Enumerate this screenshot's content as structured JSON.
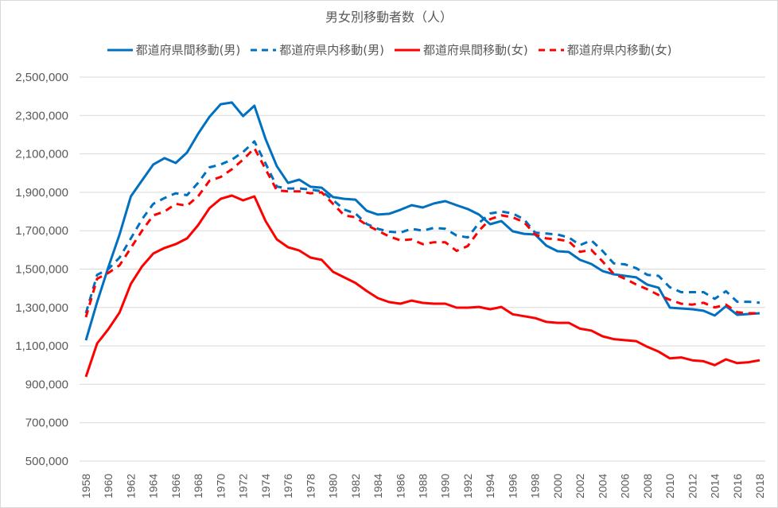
{
  "chart_data": {
    "type": "line",
    "title": "男女別移動者数（人）",
    "xlabel": "",
    "ylabel": "",
    "ylim": [
      500000,
      2500000
    ],
    "yticks": [
      500000,
      700000,
      900000,
      1100000,
      1300000,
      1500000,
      1700000,
      1900000,
      2100000,
      2300000,
      2500000
    ],
    "ytick_labels": [
      "500,000",
      "700,000",
      "900,000",
      "1,100,000",
      "1,300,000",
      "1,500,000",
      "1,700,000",
      "1,900,000",
      "2,100,000",
      "2,300,000",
      "2,500,000"
    ],
    "xtick_labels": [
      "1958",
      "1960",
      "1962",
      "1964",
      "1966",
      "1968",
      "1970",
      "1972",
      "1974",
      "1976",
      "1978",
      "1980",
      "1982",
      "1984",
      "1986",
      "1988",
      "1990",
      "1992",
      "1994",
      "1996",
      "1998",
      "2000",
      "2002",
      "2004",
      "2006",
      "2008",
      "2010",
      "2012",
      "2014",
      "2016",
      "2018"
    ],
    "grid": true,
    "legend_position": "top",
    "x": [
      1958,
      1959,
      1960,
      1961,
      1962,
      1963,
      1964,
      1965,
      1966,
      1967,
      1968,
      1969,
      1970,
      1971,
      1972,
      1973,
      1974,
      1975,
      1976,
      1977,
      1978,
      1979,
      1980,
      1981,
      1982,
      1983,
      1984,
      1985,
      1986,
      1987,
      1988,
      1989,
      1990,
      1991,
      1992,
      1993,
      1994,
      1995,
      1996,
      1997,
      1998,
      1999,
      2000,
      2001,
      2002,
      2003,
      2004,
      2005,
      2006,
      2007,
      2008,
      2009,
      2010,
      2011,
      2012,
      2013,
      2014,
      2015,
      2016,
      2017,
      2018
    ],
    "series": [
      {
        "name": "都道府県間移動(男)",
        "color": "#0070c0",
        "dash": "solid",
        "values": [
          1129000,
          1328000,
          1510000,
          1680000,
          1879000,
          1962000,
          2045000,
          2078000,
          2053000,
          2107000,
          2206000,
          2293000,
          2359000,
          2368000,
          2297000,
          2351000,
          2177000,
          2036000,
          1949000,
          1966000,
          1929000,
          1924000,
          1875000,
          1866000,
          1862000,
          1804000,
          1784000,
          1788000,
          1809000,
          1833000,
          1821000,
          1842000,
          1854000,
          1833000,
          1813000,
          1784000,
          1734000,
          1750000,
          1697000,
          1684000,
          1680000,
          1622000,
          1593000,
          1589000,
          1548000,
          1527000,
          1490000,
          1473000,
          1465000,
          1457000,
          1419000,
          1403000,
          1299000,
          1295000,
          1291000,
          1283000,
          1258000,
          1307000,
          1262000,
          1266000,
          1270000
        ]
      },
      {
        "name": "都道府県内移動(男)",
        "color": "#0070c0",
        "dash": "dashed",
        "values": [
          1270000,
          1470000,
          1500000,
          1560000,
          1660000,
          1760000,
          1840000,
          1870000,
          1895000,
          1885000,
          1950000,
          2030000,
          2045000,
          2070000,
          2110000,
          2165000,
          2050000,
          1930000,
          1920000,
          1920000,
          1915000,
          1905000,
          1860000,
          1810000,
          1790000,
          1735000,
          1710000,
          1695000,
          1690000,
          1710000,
          1700000,
          1715000,
          1710000,
          1675000,
          1665000,
          1740000,
          1790000,
          1800000,
          1790000,
          1760000,
          1690000,
          1685000,
          1680000,
          1665000,
          1625000,
          1650000,
          1595000,
          1530000,
          1525000,
          1505000,
          1470000,
          1465000,
          1405000,
          1380000,
          1380000,
          1380000,
          1345000,
          1385000,
          1330000,
          1330000,
          1325000
        ]
      },
      {
        "name": "都道府県間移動(女)",
        "color": "#ff0000",
        "dash": "solid",
        "values": [
          939000,
          1113000,
          1187000,
          1274000,
          1423000,
          1514000,
          1581000,
          1610000,
          1630000,
          1660000,
          1730000,
          1817000,
          1866000,
          1883000,
          1858000,
          1879000,
          1750000,
          1655000,
          1614000,
          1597000,
          1560000,
          1548000,
          1486000,
          1457000,
          1428000,
          1386000,
          1349000,
          1328000,
          1320000,
          1336000,
          1324000,
          1320000,
          1320000,
          1299000,
          1299000,
          1303000,
          1291000,
          1303000,
          1265000,
          1255000,
          1245000,
          1225000,
          1220000,
          1220000,
          1190000,
          1180000,
          1150000,
          1135000,
          1130000,
          1125000,
          1095000,
          1070000,
          1035000,
          1040000,
          1025000,
          1020000,
          1000000,
          1030000,
          1010000,
          1015000,
          1025000
        ]
      },
      {
        "name": "都道府県内移動(女)",
        "color": "#ff0000",
        "dash": "dashed",
        "values": [
          1250000,
          1450000,
          1480000,
          1520000,
          1610000,
          1700000,
          1780000,
          1800000,
          1840000,
          1830000,
          1880000,
          1960000,
          1980000,
          2020000,
          2070000,
          2130000,
          2020000,
          1910000,
          1905000,
          1905000,
          1895000,
          1900000,
          1840000,
          1780000,
          1770000,
          1730000,
          1700000,
          1670000,
          1650000,
          1655000,
          1630000,
          1640000,
          1640000,
          1595000,
          1620000,
          1700000,
          1760000,
          1780000,
          1770000,
          1745000,
          1680000,
          1660000,
          1655000,
          1645000,
          1590000,
          1600000,
          1540000,
          1475000,
          1450000,
          1420000,
          1395000,
          1365000,
          1340000,
          1320000,
          1315000,
          1325000,
          1300000,
          1315000,
          1275000,
          1270000,
          1270000
        ]
      }
    ]
  }
}
